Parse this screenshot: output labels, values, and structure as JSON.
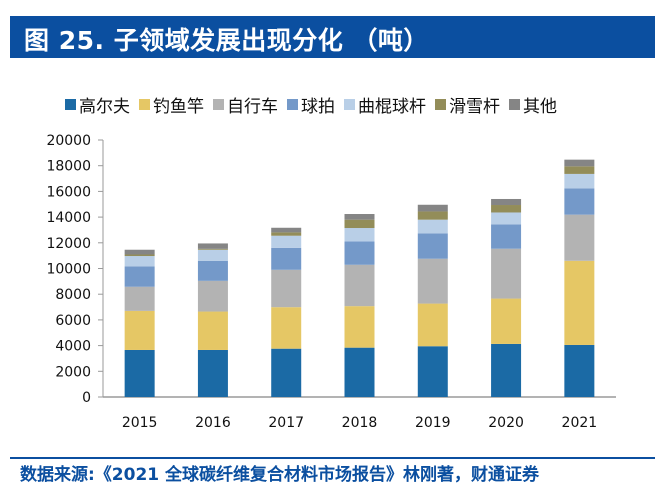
{
  "header": {
    "title": "图 25. 子领域发展出现分化 （吨）"
  },
  "footer": {
    "source": "数据来源:《2021 全球碳纤维复合材料市场报告》林刚著，财通证券"
  },
  "chart_data": {
    "type": "bar",
    "stacked": true,
    "title": "子领域发展出现分化",
    "unit": "吨",
    "xlabel": "",
    "ylabel": "",
    "categories": [
      "2015",
      "2016",
      "2017",
      "2018",
      "2019",
      "2020",
      "2021"
    ],
    "ylim": [
      0,
      20000
    ],
    "yticks": [
      0,
      2000,
      4000,
      6000,
      8000,
      10000,
      12000,
      14000,
      16000,
      18000,
      20000
    ],
    "grid": false,
    "legend_position": "top",
    "series": [
      {
        "name": "高尔夫",
        "color": "#1b6aa5",
        "values": [
          3660,
          3660,
          3760,
          3840,
          3950,
          4130,
          4050
        ]
      },
      {
        "name": "钓鱼竿",
        "color": "#e5c765",
        "values": [
          3040,
          2990,
          3230,
          3230,
          3320,
          3530,
          6550
        ]
      },
      {
        "name": "自行车",
        "color": "#b3b3b3",
        "values": [
          1880,
          2390,
          2910,
          3220,
          3490,
          3880,
          3590
        ]
      },
      {
        "name": "球拍",
        "color": "#7499c9",
        "values": [
          1580,
          1560,
          1710,
          1820,
          1970,
          1890,
          2050
        ]
      },
      {
        "name": "曲棍球杆",
        "color": "#b9cfe7",
        "values": [
          810,
          860,
          940,
          1040,
          1070,
          930,
          1120
        ]
      },
      {
        "name": "滑雪杆",
        "color": "#938d59",
        "values": [
          120,
          70,
          260,
          650,
          640,
          580,
          590
        ]
      },
      {
        "name": "其他",
        "color": "#858585",
        "values": [
          370,
          420,
          360,
          440,
          520,
          470,
          520
        ]
      }
    ]
  }
}
